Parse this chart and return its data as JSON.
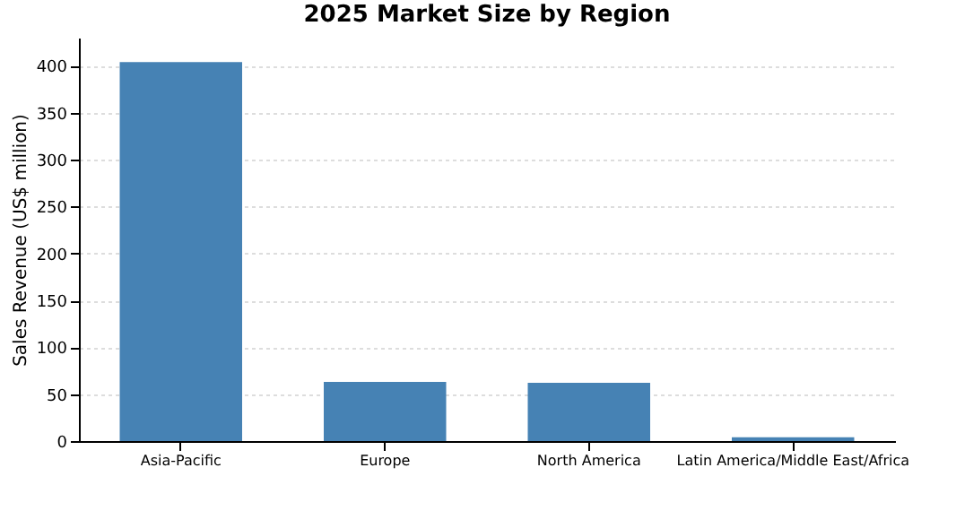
{
  "chart_data": {
    "type": "bar",
    "title": "2025 Market Size by Region",
    "ylabel": "Sales Revenue (US$ million)",
    "categories": [
      "Asia-Pacific",
      "Europe",
      "North America",
      "Latin America/Middle East/Africa"
    ],
    "values": [
      404,
      63,
      62,
      4
    ],
    "color": "#4682b4",
    "ylim": [
      0,
      430
    ],
    "yticks": [
      0,
      50,
      100,
      150,
      200,
      250,
      300,
      350,
      400
    ],
    "grid": "y"
  }
}
